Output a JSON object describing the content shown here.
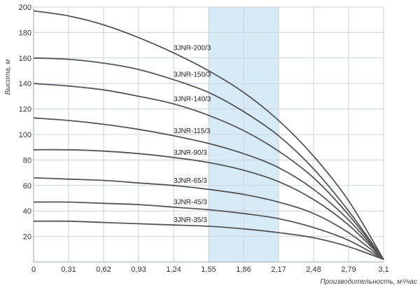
{
  "chart_data": {
    "type": "line",
    "title": "",
    "xlabel": "Производительность, м³/час",
    "ylabel": "Высота, м",
    "xlim": [
      0,
      3.1
    ],
    "ylim": [
      0,
      200
    ],
    "x_ticks": [
      "0",
      "0,31",
      "0,62",
      "0,93",
      "1,24",
      "1,55",
      "1,86",
      "2,17",
      "2,48",
      "2,79",
      "3,1"
    ],
    "y_ticks": [
      20,
      40,
      60,
      80,
      100,
      120,
      140,
      160,
      180,
      200
    ],
    "y_tick_labels": [
      "20",
      "40",
      "60",
      "80",
      "100",
      "120",
      "140",
      "160",
      "180",
      "200"
    ],
    "grid": true,
    "highlight_band": {
      "from": 1.55,
      "to": 2.17,
      "color": "#d6eaf7"
    },
    "line_color": "#555555",
    "series": [
      {
        "name": "3JNR-200/3",
        "shutoff": 197,
        "x": [
          0,
          0.31,
          0.62,
          0.93,
          1.24,
          1.55,
          1.86,
          2.17,
          2.48,
          2.79,
          3.1
        ],
        "values": [
          197,
          193,
          186,
          176,
          164,
          150,
          133,
          111,
          83,
          48,
          2
        ]
      },
      {
        "name": "3JNR-150/3",
        "shutoff": 160,
        "x": [
          0,
          0.31,
          0.62,
          0.93,
          1.24,
          1.55,
          1.86,
          2.17,
          2.48,
          2.79,
          3.1
        ],
        "values": [
          160,
          159,
          156,
          151,
          143,
          133,
          118,
          99,
          73,
          40,
          2
        ]
      },
      {
        "name": "3JNR-140/3",
        "shutoff": 140,
        "x": [
          0,
          0.31,
          0.62,
          0.93,
          1.24,
          1.55,
          1.86,
          2.17,
          2.48,
          2.79,
          3.1
        ],
        "values": [
          140,
          138,
          135,
          130,
          124,
          115,
          103,
          87,
          66,
          37,
          2
        ]
      },
      {
        "name": "3JNR-115/3",
        "shutoff": 113,
        "x": [
          0,
          0.31,
          0.62,
          0.93,
          1.24,
          1.55,
          1.86,
          2.17,
          2.48,
          2.79,
          3.1
        ],
        "values": [
          113,
          111,
          108,
          104,
          99,
          93,
          85,
          74,
          57,
          33,
          2
        ]
      },
      {
        "name": "3JNR-90/3",
        "shutoff": 88,
        "x": [
          0,
          0.31,
          0.62,
          0.93,
          1.24,
          1.55,
          1.86,
          2.17,
          2.48,
          2.79,
          3.1
        ],
        "values": [
          88,
          88,
          87,
          85,
          82,
          78,
          72,
          63,
          49,
          29,
          2
        ]
      },
      {
        "name": "3JNR-65/3",
        "shutoff": 66,
        "x": [
          0,
          0.31,
          0.62,
          0.93,
          1.24,
          1.55,
          1.86,
          2.17,
          2.48,
          2.79,
          3.1
        ],
        "values": [
          66,
          65,
          64,
          62,
          60,
          57,
          53,
          47,
          38,
          23,
          2
        ]
      },
      {
        "name": "3JNR-45/3",
        "shutoff": 47,
        "x": [
          0,
          0.31,
          0.62,
          0.93,
          1.24,
          1.55,
          1.86,
          2.17,
          2.48,
          2.79,
          3.1
        ],
        "values": [
          47,
          47,
          46,
          45,
          43,
          41,
          38,
          34,
          27,
          17,
          2
        ]
      },
      {
        "name": "3JNR-35/3",
        "shutoff": 32,
        "x": [
          0,
          0.31,
          0.62,
          0.93,
          1.24,
          1.55,
          1.86,
          2.17,
          2.48,
          2.79,
          3.1
        ],
        "values": [
          32,
          32,
          31,
          30,
          29,
          28,
          26,
          23,
          19,
          12,
          2
        ]
      }
    ]
  }
}
